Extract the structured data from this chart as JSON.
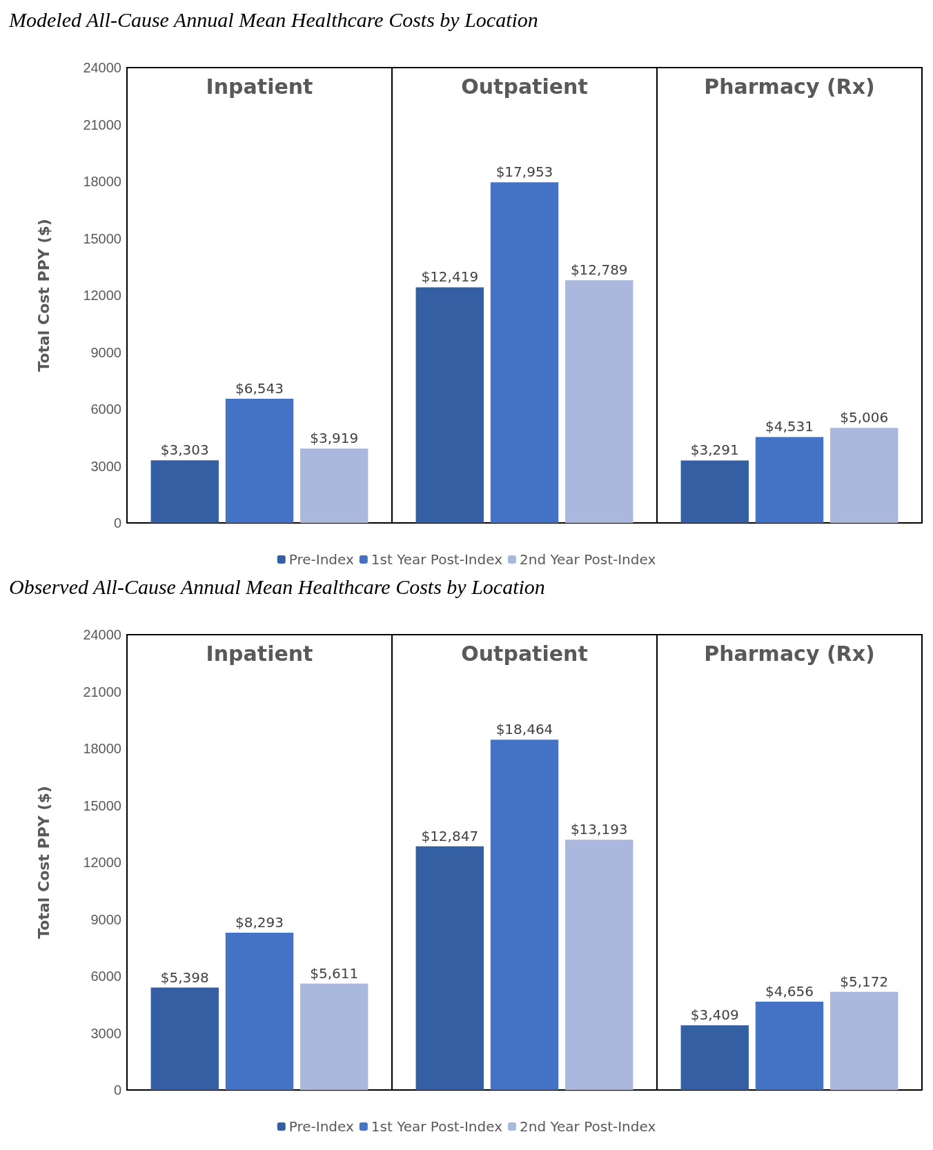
{
  "chart_data": [
    {
      "type": "bar",
      "title": "Modeled All-Cause Annual Mean Healthcare Costs by Location",
      "ylabel": "Total Cost PPY ($)",
      "categories": [
        "Inpatient",
        "Outpatient",
        "Pharmacy (Rx)"
      ],
      "ylim": [
        0,
        24000
      ],
      "yticks": [
        0,
        3000,
        6000,
        9000,
        12000,
        15000,
        18000,
        21000,
        24000
      ],
      "grid": false,
      "legend": "bottom",
      "series": [
        {
          "name": "Pre-Index",
          "color": "#355fa3",
          "values": [
            3303,
            12419,
            3291
          ],
          "value_labels": [
            "$3,303",
            "$12,419",
            "$3,291"
          ]
        },
        {
          "name": "1st Year Post-Index",
          "color": "#4472c4",
          "values": [
            6543,
            17953,
            4531
          ],
          "value_labels": [
            "$6,543",
            "$17,953",
            "$4,531"
          ]
        },
        {
          "name": "2nd Year Post-Index",
          "color": "#a9b8dc",
          "values": [
            3919,
            12789,
            5006
          ],
          "value_labels": [
            "$3,919",
            "$12,789",
            "$5,006"
          ]
        }
      ]
    },
    {
      "type": "bar",
      "title": "Observed All-Cause Annual Mean Healthcare Costs by Location",
      "ylabel": "Total Cost PPY ($)",
      "categories": [
        "Inpatient",
        "Outpatient",
        "Pharmacy (Rx)"
      ],
      "ylim": [
        0,
        24000
      ],
      "yticks": [
        0,
        3000,
        6000,
        9000,
        12000,
        15000,
        18000,
        21000,
        24000
      ],
      "grid": false,
      "legend": "bottom",
      "series": [
        {
          "name": "Pre-Index",
          "color": "#355fa3",
          "values": [
            5398,
            12847,
            3409
          ],
          "value_labels": [
            "$5,398",
            "$12,847",
            "$3,409"
          ]
        },
        {
          "name": "1st Year Post-Index",
          "color": "#4472c4",
          "values": [
            8293,
            18464,
            4656
          ],
          "value_labels": [
            "$8,293",
            "$18,464",
            "$4,656"
          ]
        },
        {
          "name": "2nd Year Post-Index",
          "color": "#a9b8dc",
          "values": [
            5611,
            13193,
            5172
          ],
          "value_labels": [
            "$5,611",
            "$13,193",
            "$5,172"
          ]
        }
      ]
    }
  ]
}
